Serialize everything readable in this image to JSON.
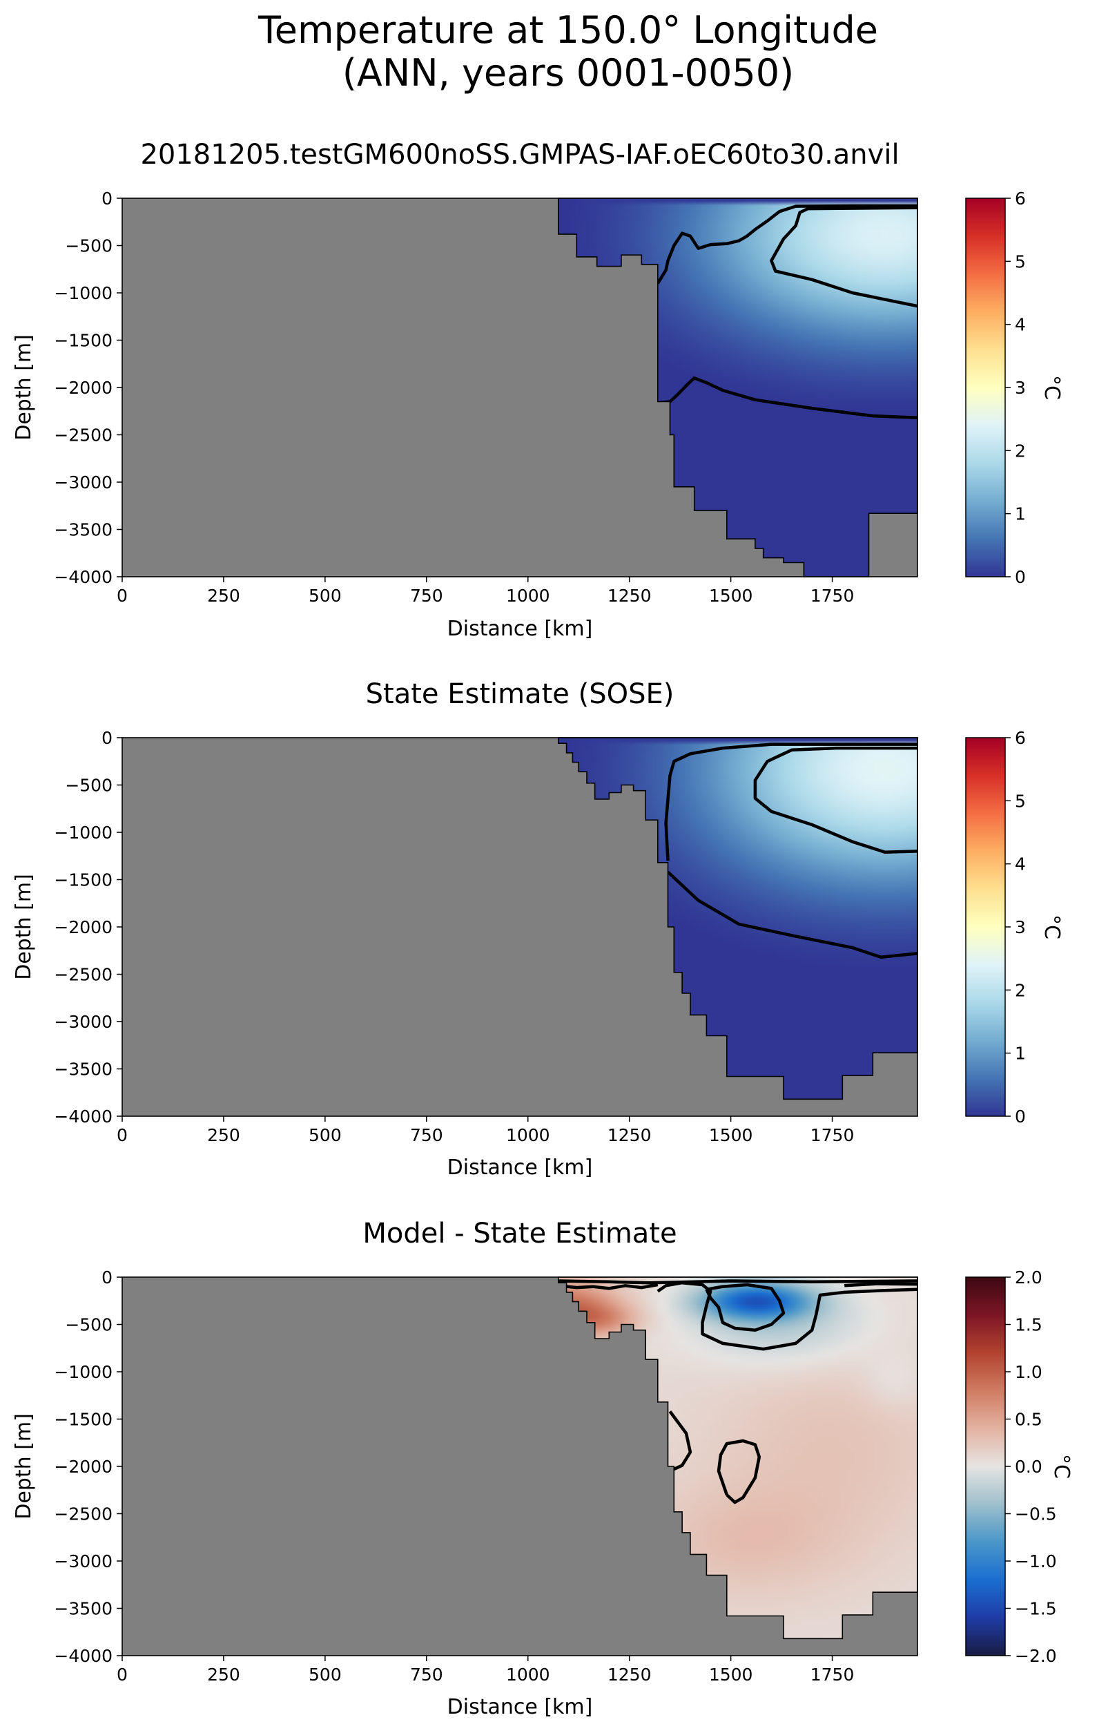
{
  "figure": {
    "title_line1": "Temperature at 150.0° Longitude",
    "title_line2": "(ANN, years 0001-0050)"
  },
  "colors": {
    "land": "#808080",
    "rdylbu_r": [
      "#313695",
      "#4575b4",
      "#74add1",
      "#abd9e9",
      "#e0f3f8",
      "#ffffbf",
      "#fee090",
      "#fdae61",
      "#f46d43",
      "#d73027",
      "#a50026"
    ],
    "balance": [
      "#181c43",
      "#1f3ba6",
      "#1a6ed1",
      "#4a97c9",
      "#9ebfcc",
      "#e6e4e2",
      "#e3b2a1",
      "#d07c63",
      "#b2432f",
      "#7d1525",
      "#3c0912"
    ]
  },
  "chart_data": [
    {
      "type": "heatmap",
      "title": "20181205.testGM600noSS.GMPAS-IAF.oEC60to30.anvil",
      "xlabel": "Distance [km]",
      "ylabel": "Depth [m]",
      "xlim": [
        0,
        1960
      ],
      "ylim": [
        -4000,
        0
      ],
      "xticks": [
        "0",
        "250",
        "500",
        "750",
        "1000",
        "1250",
        "1500",
        "1750"
      ],
      "yticks": [
        "0",
        "−500",
        "−1000",
        "−1500",
        "−2000",
        "−2500",
        "−3000",
        "−3500",
        "−4000"
      ],
      "colorbar": {
        "label": "°C",
        "range": [
          0,
          6
        ],
        "ticks": [
          "0",
          "1",
          "2",
          "3",
          "4",
          "5",
          "6"
        ],
        "colormap": "RdYlBu_r"
      },
      "contour_levels": [
        0,
        1
      ]
    },
    {
      "type": "heatmap",
      "title": "State Estimate (SOSE)",
      "xlabel": "Distance [km]",
      "ylabel": "Depth [m]",
      "xlim": [
        0,
        1960
      ],
      "ylim": [
        -4000,
        0
      ],
      "xticks": [
        "0",
        "250",
        "500",
        "750",
        "1000",
        "1250",
        "1500",
        "1750"
      ],
      "yticks": [
        "0",
        "−500",
        "−1000",
        "−1500",
        "−2000",
        "−2500",
        "−3000",
        "−3500",
        "−4000"
      ],
      "colorbar": {
        "label": "°C",
        "range": [
          0,
          6
        ],
        "ticks": [
          "0",
          "1",
          "2",
          "3",
          "4",
          "5",
          "6"
        ],
        "colormap": "RdYlBu_r"
      },
      "contour_levels": [
        0,
        1
      ]
    },
    {
      "type": "heatmap",
      "title": "Model - State Estimate",
      "xlabel": "Distance [km]",
      "ylabel": "Depth [m]",
      "xlim": [
        0,
        1960
      ],
      "ylim": [
        -4000,
        0
      ],
      "xticks": [
        "0",
        "250",
        "500",
        "750",
        "1000",
        "1250",
        "1500",
        "1750"
      ],
      "yticks": [
        "0",
        "−500",
        "−1000",
        "−1500",
        "−2000",
        "−2500",
        "−3000",
        "−3500",
        "−4000"
      ],
      "colorbar": {
        "label": "°C",
        "range": [
          -2,
          2
        ],
        "ticks": [
          "−2.0",
          "−1.5",
          "−1.0",
          "−0.5",
          "0.0",
          "0.5",
          "1.0",
          "1.5",
          "2.0"
        ],
        "colormap": "balance"
      },
      "contour_levels": [
        -0.5,
        0,
        0.5
      ]
    }
  ],
  "bathymetry": [
    {
      "ocean_outline": [
        [
          1075,
          0
        ],
        [
          1075,
          -380
        ],
        [
          1120,
          -380
        ],
        [
          1120,
          -620
        ],
        [
          1170,
          -620
        ],
        [
          1170,
          -720
        ],
        [
          1230,
          -720
        ],
        [
          1230,
          -600
        ],
        [
          1280,
          -600
        ],
        [
          1280,
          -700
        ],
        [
          1320,
          -700
        ],
        [
          1320,
          -2150
        ],
        [
          1350,
          -2150
        ],
        [
          1350,
          -2500
        ],
        [
          1360,
          -2500
        ],
        [
          1360,
          -3050
        ],
        [
          1410,
          -3050
        ],
        [
          1410,
          -3300
        ],
        [
          1490,
          -3300
        ],
        [
          1490,
          -3600
        ],
        [
          1560,
          -3600
        ],
        [
          1560,
          -3700
        ],
        [
          1580,
          -3700
        ],
        [
          1580,
          -3800
        ],
        [
          1630,
          -3800
        ],
        [
          1630,
          -3850
        ],
        [
          1680,
          -3850
        ],
        [
          1680,
          -4000
        ],
        [
          1840,
          -4000
        ],
        [
          1840,
          -3330
        ],
        [
          1960,
          -3330
        ],
        [
          1960,
          0
        ]
      ]
    },
    {
      "ocean_outline": [
        [
          1075,
          0
        ],
        [
          1075,
          -60
        ],
        [
          1095,
          -60
        ],
        [
          1095,
          -160
        ],
        [
          1110,
          -160
        ],
        [
          1110,
          -260
        ],
        [
          1125,
          -260
        ],
        [
          1125,
          -360
        ],
        [
          1145,
          -360
        ],
        [
          1145,
          -480
        ],
        [
          1165,
          -480
        ],
        [
          1165,
          -650
        ],
        [
          1200,
          -650
        ],
        [
          1200,
          -580
        ],
        [
          1230,
          -580
        ],
        [
          1230,
          -500
        ],
        [
          1260,
          -500
        ],
        [
          1260,
          -560
        ],
        [
          1290,
          -560
        ],
        [
          1290,
          -870
        ],
        [
          1320,
          -870
        ],
        [
          1320,
          -1320
        ],
        [
          1345,
          -1320
        ],
        [
          1345,
          -2000
        ],
        [
          1360,
          -2000
        ],
        [
          1360,
          -2480
        ],
        [
          1380,
          -2480
        ],
        [
          1380,
          -2700
        ],
        [
          1400,
          -2700
        ],
        [
          1400,
          -2930
        ],
        [
          1440,
          -2930
        ],
        [
          1440,
          -3150
        ],
        [
          1490,
          -3150
        ],
        [
          1490,
          -3580
        ],
        [
          1630,
          -3580
        ],
        [
          1630,
          -3820
        ],
        [
          1775,
          -3820
        ],
        [
          1775,
          -3570
        ],
        [
          1850,
          -3570
        ],
        [
          1850,
          -3330
        ],
        [
          1960,
          -3330
        ],
        [
          1960,
          0
        ]
      ]
    },
    {
      "ocean_outline": [
        [
          1075,
          0
        ],
        [
          1075,
          -60
        ],
        [
          1095,
          -60
        ],
        [
          1095,
          -160
        ],
        [
          1110,
          -160
        ],
        [
          1110,
          -260
        ],
        [
          1125,
          -260
        ],
        [
          1125,
          -360
        ],
        [
          1145,
          -360
        ],
        [
          1145,
          -480
        ],
        [
          1165,
          -480
        ],
        [
          1165,
          -650
        ],
        [
          1200,
          -650
        ],
        [
          1200,
          -580
        ],
        [
          1230,
          -580
        ],
        [
          1230,
          -500
        ],
        [
          1260,
          -500
        ],
        [
          1260,
          -560
        ],
        [
          1290,
          -560
        ],
        [
          1290,
          -870
        ],
        [
          1320,
          -870
        ],
        [
          1320,
          -1320
        ],
        [
          1345,
          -1320
        ],
        [
          1345,
          -2000
        ],
        [
          1360,
          -2000
        ],
        [
          1360,
          -2480
        ],
        [
          1380,
          -2480
        ],
        [
          1380,
          -2700
        ],
        [
          1400,
          -2700
        ],
        [
          1400,
          -2930
        ],
        [
          1440,
          -2930
        ],
        [
          1440,
          -3150
        ],
        [
          1490,
          -3150
        ],
        [
          1490,
          -3580
        ],
        [
          1630,
          -3580
        ],
        [
          1630,
          -3820
        ],
        [
          1775,
          -3820
        ],
        [
          1775,
          -3570
        ],
        [
          1850,
          -3570
        ],
        [
          1850,
          -3330
        ],
        [
          1960,
          -3330
        ],
        [
          1960,
          0
        ]
      ]
    }
  ],
  "fields": [
    {
      "deep": -0.1,
      "core_value": 2.35,
      "core_center": [
        1880,
        -380
      ],
      "core_radius": [
        560,
        1350
      ],
      "surface_band": [
        0,
        -60
      ]
    },
    {
      "deep": -0.1,
      "core_value": 2.45,
      "core_center": [
        1880,
        -330
      ],
      "core_radius": [
        560,
        1500
      ],
      "surface_band": [
        0,
        -50
      ]
    },
    {
      "blobs": [
        {
          "center": [
            1090,
            -300
          ],
          "radius": [
            150,
            320
          ],
          "value": 0.8
        },
        {
          "center": [
            1180,
            -450
          ],
          "radius": [
            110,
            200
          ],
          "value": 0.45
        },
        {
          "center": [
            1560,
            -250
          ],
          "radius": [
            160,
            230
          ],
          "value": -1.3
        },
        {
          "center": [
            1620,
            -500
          ],
          "radius": [
            260,
            500
          ],
          "value": -0.35
        },
        {
          "center": [
            1750,
            -1800
          ],
          "radius": [
            350,
            1200
          ],
          "value": 0.18
        },
        {
          "center": [
            1900,
            -1100
          ],
          "radius": [
            90,
            350
          ],
          "value": -0.12
        },
        {
          "center": [
            1530,
            -2800
          ],
          "radius": [
            300,
            700
          ],
          "value": 0.2
        }
      ]
    }
  ],
  "contours": [
    [
      [
        [
          1325,
          -2160
        ],
        [
          1350,
          -2150
        ],
        [
          1370,
          -2070
        ],
        [
          1395,
          -1960
        ],
        [
          1410,
          -1900
        ],
        [
          1440,
          -1950
        ],
        [
          1480,
          -2030
        ],
        [
          1560,
          -2130
        ],
        [
          1700,
          -2220
        ],
        [
          1850,
          -2300
        ],
        [
          1960,
          -2320
        ]
      ],
      [
        [
          1320,
          -900
        ],
        [
          1340,
          -760
        ],
        [
          1345,
          -660
        ],
        [
          1360,
          -500
        ],
        [
          1380,
          -370
        ],
        [
          1400,
          -400
        ],
        [
          1420,
          -530
        ],
        [
          1450,
          -490
        ],
        [
          1490,
          -480
        ],
        [
          1520,
          -450
        ],
        [
          1540,
          -400
        ],
        [
          1560,
          -330
        ],
        [
          1590,
          -240
        ],
        [
          1620,
          -140
        ],
        [
          1660,
          -85
        ],
        [
          1800,
          -80
        ],
        [
          1960,
          -80
        ]
      ],
      [
        [
          1960,
          -1140
        ],
        [
          1800,
          -1000
        ],
        [
          1700,
          -860
        ],
        [
          1610,
          -770
        ],
        [
          1600,
          -660
        ],
        [
          1630,
          -430
        ],
        [
          1660,
          -290
        ],
        [
          1670,
          -150
        ],
        [
          1690,
          -110
        ],
        [
          1960,
          -100
        ]
      ]
    ],
    [
      [
        [
          1345,
          -1420
        ],
        [
          1370,
          -1520
        ],
        [
          1420,
          -1720
        ],
        [
          1520,
          -1970
        ],
        [
          1650,
          -2090
        ],
        [
          1800,
          -2220
        ],
        [
          1870,
          -2320
        ],
        [
          1960,
          -2280
        ]
      ],
      [
        [
          1345,
          -1300
        ],
        [
          1340,
          -900
        ],
        [
          1350,
          -400
        ],
        [
          1360,
          -250
        ],
        [
          1400,
          -170
        ],
        [
          1480,
          -110
        ],
        [
          1600,
          -70
        ],
        [
          1960,
          -70
        ]
      ],
      [
        [
          1960,
          -1200
        ],
        [
          1880,
          -1210
        ],
        [
          1800,
          -1100
        ],
        [
          1700,
          -920
        ],
        [
          1600,
          -780
        ],
        [
          1560,
          -640
        ],
        [
          1560,
          -450
        ],
        [
          1590,
          -250
        ],
        [
          1650,
          -130
        ],
        [
          1760,
          -110
        ],
        [
          1960,
          -110
        ]
      ]
    ],
    [
      [
        [
          1350,
          -1420
        ],
        [
          1390,
          -1650
        ],
        [
          1400,
          -1850
        ],
        [
          1380,
          -1990
        ],
        [
          1360,
          -2030
        ]
      ],
      [
        [
          1490,
          -2300
        ],
        [
          1470,
          -2050
        ],
        [
          1475,
          -1880
        ],
        [
          1490,
          -1760
        ],
        [
          1530,
          -1730
        ],
        [
          1560,
          -1770
        ],
        [
          1570,
          -1900
        ],
        [
          1560,
          -2120
        ],
        [
          1530,
          -2330
        ],
        [
          1510,
          -2380
        ],
        [
          1490,
          -2300
        ]
      ],
      [
        [
          1320,
          -150
        ],
        [
          1340,
          -90
        ],
        [
          1380,
          -60
        ],
        [
          1430,
          -80
        ],
        [
          1450,
          -150
        ],
        [
          1440,
          -300
        ],
        [
          1430,
          -480
        ],
        [
          1430,
          -600
        ],
        [
          1480,
          -700
        ],
        [
          1580,
          -760
        ],
        [
          1660,
          -700
        ],
        [
          1700,
          -560
        ],
        [
          1710,
          -400
        ],
        [
          1720,
          -190
        ],
        [
          1780,
          -160
        ],
        [
          1880,
          -140
        ],
        [
          1960,
          -130
        ]
      ],
      [
        [
          1440,
          -130
        ],
        [
          1480,
          -100
        ],
        [
          1540,
          -80
        ],
        [
          1600,
          -120
        ],
        [
          1620,
          -250
        ],
        [
          1630,
          -380
        ],
        [
          1600,
          -500
        ],
        [
          1560,
          -560
        ],
        [
          1510,
          -540
        ],
        [
          1480,
          -480
        ],
        [
          1470,
          -320
        ],
        [
          1450,
          -220
        ],
        [
          1440,
          -130
        ]
      ],
      [
        [
          1075,
          -40
        ],
        [
          1200,
          -50
        ],
        [
          1300,
          -60
        ],
        [
          1500,
          -40
        ],
        [
          1700,
          -50
        ],
        [
          1960,
          -40
        ]
      ],
      [
        [
          1075,
          -90
        ],
        [
          1120,
          -110
        ],
        [
          1160,
          -100
        ],
        [
          1200,
          -120
        ],
        [
          1240,
          -90
        ],
        [
          1280,
          -110
        ],
        [
          1320,
          -80
        ]
      ],
      [
        [
          1780,
          -90
        ],
        [
          1860,
          -70
        ],
        [
          1960,
          -75
        ]
      ]
    ]
  ]
}
